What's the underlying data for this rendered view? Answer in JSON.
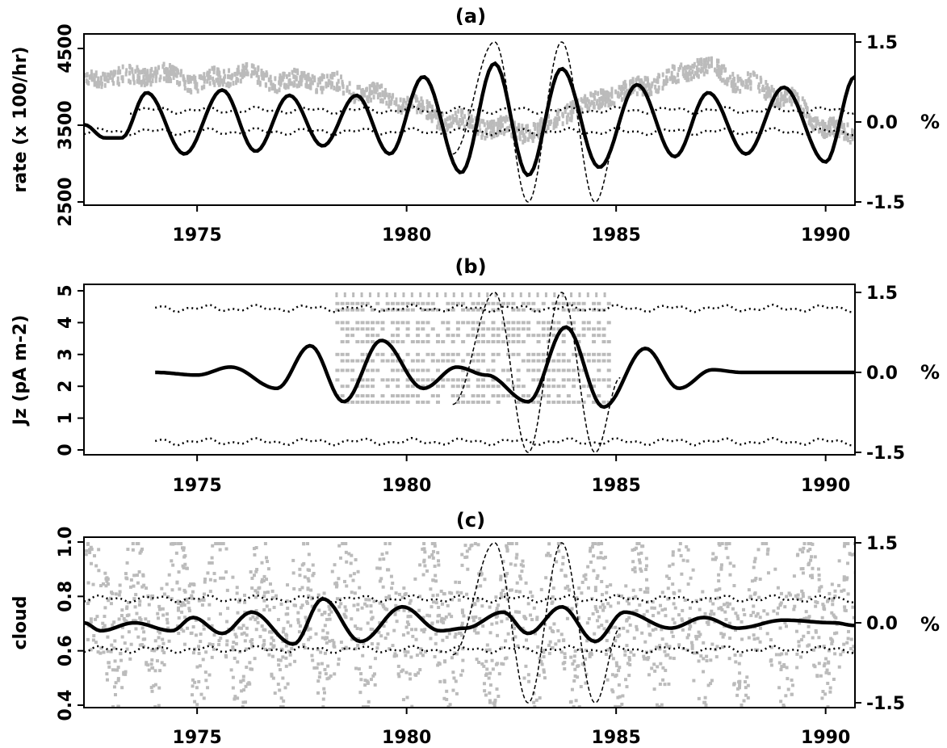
{
  "chart_data": [
    {
      "panel": "a",
      "type": "line",
      "title": "(a)",
      "ylabel": "rate (x 100/hr)",
      "y2label": "%",
      "xlim": [
        1972.3,
        1990.7
      ],
      "ylim": [
        2500,
        4500
      ],
      "y2lim": [
        -1.5,
        1.5
      ],
      "xticks": [
        "1975",
        "1980",
        "1985",
        "1990"
      ],
      "yticks": [
        "2500",
        "3500",
        "4500"
      ],
      "y2ticks": [
        "1.5",
        "0.0",
        "-1.5"
      ],
      "grid": false,
      "colors": {
        "observed": "#bbbbbb",
        "filtered": "#000000",
        "bounds": "#000000",
        "reference_wave": "#000000"
      },
      "series": [
        {
          "role": "observed",
          "style": "grey scatter",
          "x": [
            1972.3,
            1973,
            1974,
            1975,
            1976,
            1977,
            1978,
            1979,
            1980,
            1981,
            1982,
            1983,
            1984,
            1985,
            1986,
            1987,
            1988,
            1989,
            1990,
            1990.7
          ],
          "y": [
            4150,
            4150,
            4200,
            4100,
            4200,
            4100,
            4100,
            3950,
            3800,
            3600,
            3500,
            3450,
            3750,
            3950,
            4100,
            4300,
            4100,
            3900,
            3500,
            3400
          ]
        },
        {
          "role": "filtered",
          "style": "thick solid",
          "x": [
            1972.3,
            1972.8,
            1973.2,
            1973.8,
            1974.7,
            1975.6,
            1976.4,
            1977.2,
            1978.0,
            1978.8,
            1979.6,
            1980.4,
            1981.3,
            1982.1,
            1982.9,
            1983.7,
            1984.6,
            1985.5,
            1986.4,
            1987.2,
            1988.1,
            1989.0,
            1990.0,
            1990.7
          ],
          "y": [
            -0.05,
            -0.3,
            -0.3,
            0.55,
            -0.6,
            0.6,
            -0.55,
            0.5,
            -0.45,
            0.5,
            -0.6,
            0.85,
            -0.95,
            1.1,
            -1.0,
            1.0,
            -0.85,
            0.7,
            -0.65,
            0.55,
            -0.6,
            0.65,
            -0.75,
            0.85
          ]
        },
        {
          "role": "upper bound",
          "style": "dotted",
          "x": [
            1973.4,
            1990.7
          ],
          "y": [
            0.22,
            0.22
          ]
        },
        {
          "role": "lower bound",
          "style": "dotted",
          "x": [
            1972.3,
            1990.7
          ],
          "y": [
            -0.18,
            -0.18
          ]
        },
        {
          "role": "reference wave",
          "style": "thin dashed",
          "x": [
            1981.1,
            1982.1,
            1982.9,
            1983.7,
            1984.5,
            1985.1
          ],
          "y": [
            -0.6,
            1.5,
            -1.5,
            1.5,
            -1.5,
            -0.1
          ]
        }
      ]
    },
    {
      "panel": "b",
      "type": "line",
      "title": "(b)",
      "ylabel": "Jz (pA m-2)",
      "y2label": "%",
      "xlim": [
        1972.3,
        1990.7
      ],
      "ylim": [
        0,
        5
      ],
      "y2lim": [
        -1.5,
        1.5
      ],
      "xticks": [
        "1975",
        "1980",
        "1985",
        "1990"
      ],
      "yticks": [
        "0",
        "1",
        "2",
        "3",
        "4",
        "5"
      ],
      "y2ticks": [
        "1.5",
        "0.0",
        "-1.5"
      ],
      "grid": false,
      "colors": {
        "observed": "#bbbbbb",
        "filtered": "#000000",
        "bounds": "#000000",
        "reference_wave": "#000000"
      },
      "series": [
        {
          "role": "observed",
          "style": "grey scatter",
          "x_range": [
            1978.3,
            1984.8
          ],
          "y_levels": [
            4.6,
            4.4,
            4.0,
            3.8,
            3.6,
            3.4,
            3.0,
            2.8,
            2.5,
            2.2,
            2.0,
            1.7,
            1.5
          ]
        },
        {
          "role": "filtered",
          "style": "thick solid",
          "x": [
            1974.0,
            1975.0,
            1975.8,
            1976.9,
            1977.7,
            1978.5,
            1979.4,
            1980.4,
            1981.2,
            1981.9,
            1982.9,
            1983.8,
            1984.7,
            1985.7,
            1986.5,
            1987.3,
            1988.0,
            1990.7
          ],
          "y": [
            0.0,
            -0.05,
            0.1,
            -0.3,
            0.5,
            -0.55,
            0.6,
            -0.3,
            0.1,
            -0.05,
            -0.55,
            0.85,
            -0.65,
            0.45,
            -0.3,
            0.05,
            0.0,
            0.0
          ]
        },
        {
          "role": "upper bound",
          "style": "dotted",
          "x": [
            1974.0,
            1990.7
          ],
          "y": [
            1.2,
            1.2
          ]
        },
        {
          "role": "lower bound",
          "style": "dotted",
          "x": [
            1974.0,
            1990.7
          ],
          "y": [
            -1.3,
            -1.3
          ]
        },
        {
          "role": "reference wave",
          "style": "thin dashed",
          "x": [
            1981.1,
            1982.1,
            1982.9,
            1983.7,
            1984.5,
            1985.1
          ],
          "y": [
            -0.6,
            1.5,
            -1.5,
            1.5,
            -1.5,
            -0.1
          ]
        }
      ]
    },
    {
      "panel": "c",
      "type": "line",
      "title": "(c)",
      "ylabel": "cloud",
      "y2label": "%",
      "xlim": [
        1972.3,
        1990.7
      ],
      "ylim": [
        0.4,
        1.0
      ],
      "y2lim": [
        -1.5,
        1.5
      ],
      "xticks": [
        "1975",
        "1980",
        "1985",
        "1990"
      ],
      "yticks": [
        "0.4",
        "0.6",
        "0.8",
        "1.0"
      ],
      "y2ticks": [
        "1.5",
        "0.0",
        "-1.5"
      ],
      "grid": false,
      "colors": {
        "observed": "#bbbbbb",
        "filtered": "#000000",
        "bounds": "#000000",
        "reference_wave": "#000000"
      },
      "series": [
        {
          "role": "observed",
          "style": "grey scatter",
          "x_range": [
            1972.3,
            1990.7
          ],
          "y_range": [
            0.4,
            1.0
          ],
          "period_years": 1.0
        },
        {
          "role": "filtered",
          "style": "thick solid",
          "x": [
            1972.3,
            1972.7,
            1973.5,
            1974.4,
            1974.9,
            1975.6,
            1976.3,
            1977.3,
            1978.0,
            1978.9,
            1979.9,
            1980.8,
            1981.4,
            1982.3,
            1982.9,
            1983.7,
            1984.5,
            1985.2,
            1986.3,
            1987.1,
            1987.9,
            1989.0,
            1990.2,
            1990.7
          ],
          "y": [
            0.0,
            -0.15,
            0.0,
            -0.15,
            0.1,
            -0.2,
            0.2,
            -0.4,
            0.45,
            -0.35,
            0.3,
            -0.15,
            -0.1,
            0.2,
            -0.2,
            0.3,
            -0.35,
            0.2,
            -0.1,
            0.1,
            -0.1,
            0.05,
            0.0,
            -0.05
          ]
        },
        {
          "role": "upper bound",
          "style": "dotted",
          "x": [
            1972.3,
            1990.7
          ],
          "y": [
            0.45,
            0.45
          ]
        },
        {
          "role": "lower bound",
          "style": "dotted",
          "x": [
            1972.3,
            1990.7
          ],
          "y": [
            -0.5,
            -0.5
          ]
        },
        {
          "role": "reference wave",
          "style": "thin dashed",
          "x": [
            1981.1,
            1982.1,
            1982.9,
            1983.7,
            1984.5,
            1985.1
          ],
          "y": [
            -0.6,
            1.5,
            -1.5,
            1.5,
            -1.5,
            -0.1
          ]
        }
      ]
    }
  ]
}
